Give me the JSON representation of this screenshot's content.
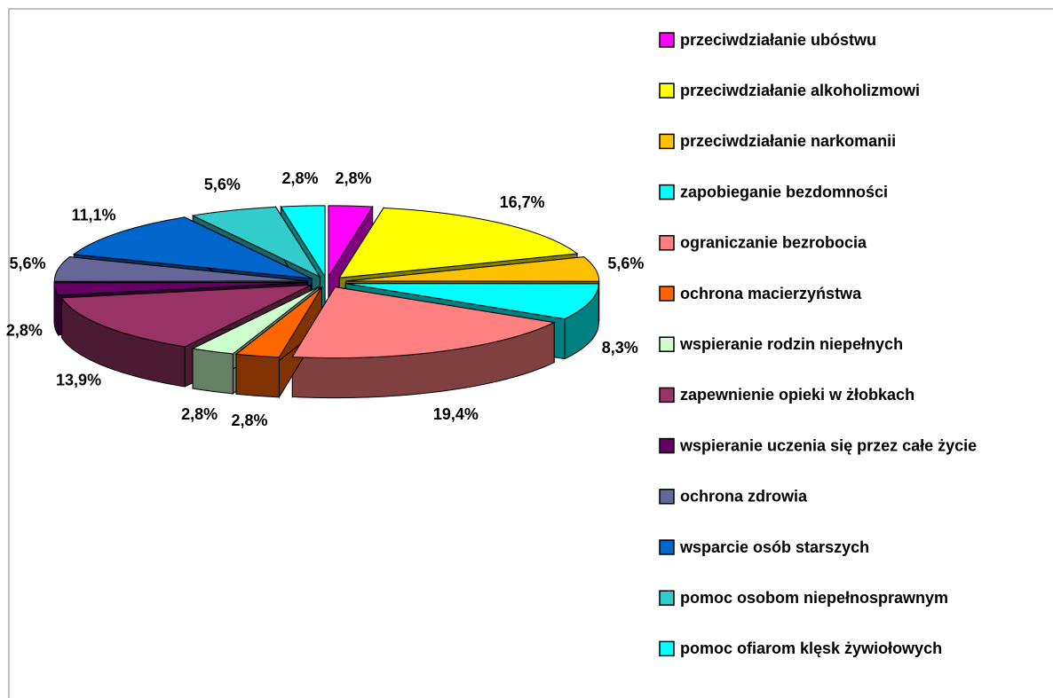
{
  "chart_data": {
    "type": "pie3d",
    "categories": [
      "przeciwdziałanie ubóstwu",
      "przeciwdziałanie alkoholizmowi",
      "przeciwdziałanie narkomanii",
      "zapobieganie bezdomności",
      "ograniczanie bezrobocia",
      "ochrona macierzyństwa",
      "wspieranie rodzin niepełnych",
      "zapewnienie opieki w żłobkach",
      "wspieranie uczenia się przez całe życie",
      "ochrona zdrowia",
      "wsparcie osób starszych",
      "pomoc osobom niepełnosprawnym",
      "pomoc ofiarom klęsk żywiołowych"
    ],
    "values": [
      2.8,
      16.7,
      5.6,
      8.3,
      19.4,
      2.8,
      2.8,
      13.9,
      2.8,
      5.6,
      11.1,
      5.6,
      2.8
    ],
    "value_labels": [
      "2,8%",
      "16,7%",
      "5,6%",
      "8,3%",
      "19,4%",
      "2,8%",
      "2,8%",
      "13,9%",
      "2,8%",
      "5,6%",
      "11,1%",
      "5,6%",
      "2,8%"
    ],
    "colors": [
      "#ff00ff",
      "#ffff00",
      "#ffc000",
      "#00ffff",
      "#ff8080",
      "#ff6600",
      "#ccffcc",
      "#993366",
      "#660066",
      "#666699",
      "#0066cc",
      "#33cccc",
      "#00ffff"
    ],
    "legend": "right"
  }
}
